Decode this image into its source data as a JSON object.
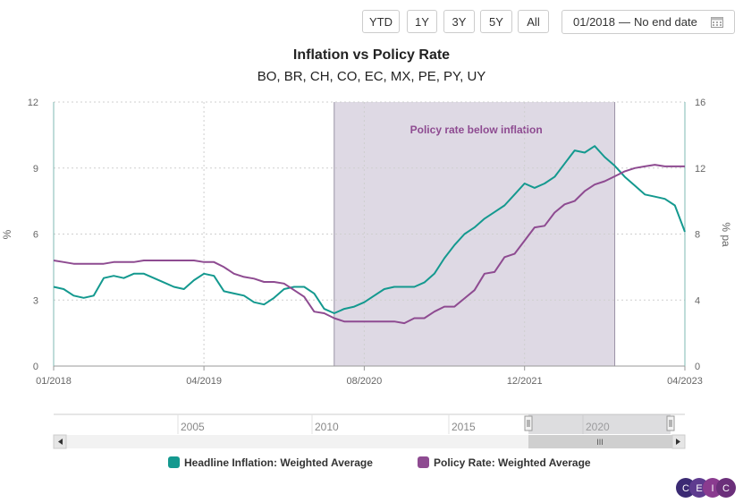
{
  "range_buttons": [
    "YTD",
    "1Y",
    "3Y",
    "5Y",
    "All"
  ],
  "date_range": {
    "start": "01/2018",
    "separator": "—",
    "end": "No end date"
  },
  "calendar_icon": "calendar-icon",
  "chart_data": {
    "type": "line",
    "title": "Inflation vs Policy Rate",
    "subtitle": "BO, BR, CH, CO, EC, MX, PE, PY, UY",
    "xlabel": "",
    "x_ticks": [
      "01/2018",
      "04/2019",
      "08/2020",
      "12/2021",
      "04/2023"
    ],
    "left_axis": {
      "label": "%",
      "ylim": [
        0,
        12
      ],
      "ticks": [
        "0",
        "3",
        "6",
        "9",
        "12"
      ]
    },
    "right_axis": {
      "label": "% pa",
      "ylim": [
        0,
        16
      ],
      "ticks": [
        "0",
        "4",
        "8",
        "12",
        "16"
      ]
    },
    "grid": true,
    "shaded_region": {
      "start": "2020-05",
      "end": "2022-09",
      "label": "Policy rate below inflation",
      "color": "#ded9e4"
    },
    "series": [
      {
        "name": "Headline Inflation: Weighted Average",
        "axis": "left",
        "color": "#14998f",
        "x": [
          "2018-01",
          "2018-02",
          "2018-03",
          "2018-04",
          "2018-05",
          "2018-06",
          "2018-07",
          "2018-08",
          "2018-09",
          "2018-10",
          "2018-11",
          "2018-12",
          "2019-01",
          "2019-02",
          "2019-03",
          "2019-04",
          "2019-05",
          "2019-06",
          "2019-07",
          "2019-08",
          "2019-09",
          "2019-10",
          "2019-11",
          "2019-12",
          "2020-01",
          "2020-02",
          "2020-03",
          "2020-04",
          "2020-05",
          "2020-06",
          "2020-07",
          "2020-08",
          "2020-09",
          "2020-10",
          "2020-11",
          "2020-12",
          "2021-01",
          "2021-02",
          "2021-03",
          "2021-04",
          "2021-05",
          "2021-06",
          "2021-07",
          "2021-08",
          "2021-09",
          "2021-10",
          "2021-11",
          "2021-12",
          "2022-01",
          "2022-02",
          "2022-03",
          "2022-04",
          "2022-05",
          "2022-06",
          "2022-07",
          "2022-08",
          "2022-09",
          "2022-10",
          "2022-11",
          "2022-12",
          "2023-01",
          "2023-02",
          "2023-03",
          "2023-04"
        ],
        "values": [
          3.6,
          3.5,
          3.2,
          3.1,
          3.2,
          4.0,
          4.1,
          4.0,
          4.2,
          4.2,
          4.0,
          3.8,
          3.6,
          3.5,
          3.9,
          4.2,
          4.1,
          3.4,
          3.3,
          3.2,
          2.9,
          2.8,
          3.1,
          3.5,
          3.6,
          3.6,
          3.3,
          2.6,
          2.4,
          2.6,
          2.7,
          2.9,
          3.2,
          3.5,
          3.6,
          3.6,
          3.6,
          3.8,
          4.2,
          4.9,
          5.5,
          6.0,
          6.3,
          6.7,
          7.0,
          7.3,
          7.8,
          8.3,
          8.1,
          8.3,
          8.6,
          9.2,
          9.8,
          9.7,
          10.0,
          9.5,
          9.1,
          8.6,
          8.2,
          7.8,
          7.7,
          7.6,
          7.3,
          6.1
        ]
      },
      {
        "name": "Policy Rate: Weighted Average",
        "axis": "right",
        "color": "#8e4b91",
        "x": [
          "2018-01",
          "2018-02",
          "2018-03",
          "2018-04",
          "2018-05",
          "2018-06",
          "2018-07",
          "2018-08",
          "2018-09",
          "2018-10",
          "2018-11",
          "2018-12",
          "2019-01",
          "2019-02",
          "2019-03",
          "2019-04",
          "2019-05",
          "2019-06",
          "2019-07",
          "2019-08",
          "2019-09",
          "2019-10",
          "2019-11",
          "2019-12",
          "2020-01",
          "2020-02",
          "2020-03",
          "2020-04",
          "2020-05",
          "2020-06",
          "2020-07",
          "2020-08",
          "2020-09",
          "2020-10",
          "2020-11",
          "2020-12",
          "2021-01",
          "2021-02",
          "2021-03",
          "2021-04",
          "2021-05",
          "2021-06",
          "2021-07",
          "2021-08",
          "2021-09",
          "2021-10",
          "2021-11",
          "2021-12",
          "2022-01",
          "2022-02",
          "2022-03",
          "2022-04",
          "2022-05",
          "2022-06",
          "2022-07",
          "2022-08",
          "2022-09",
          "2022-10",
          "2022-11",
          "2022-12",
          "2023-01",
          "2023-02",
          "2023-03",
          "2023-04"
        ],
        "values": [
          6.4,
          6.3,
          6.2,
          6.2,
          6.2,
          6.2,
          6.3,
          6.3,
          6.3,
          6.4,
          6.4,
          6.4,
          6.4,
          6.4,
          6.4,
          6.3,
          6.3,
          6.0,
          5.6,
          5.4,
          5.3,
          5.1,
          5.1,
          5.0,
          4.6,
          4.2,
          3.3,
          3.2,
          2.9,
          2.7,
          2.7,
          2.7,
          2.7,
          2.7,
          2.7,
          2.6,
          2.9,
          2.9,
          3.3,
          3.6,
          3.6,
          4.1,
          4.6,
          5.6,
          5.7,
          6.6,
          6.8,
          7.6,
          8.4,
          8.5,
          9.3,
          9.8,
          10.0,
          10.6,
          11.0,
          11.2,
          11.5,
          11.8,
          12.0,
          12.1,
          12.2,
          12.1,
          12.1,
          12.1
        ]
      }
    ],
    "legend_position": "bottom"
  },
  "navigator": {
    "year_labels": [
      "2005",
      "2010",
      "2015",
      "2020"
    ],
    "scroll_grip": "III"
  },
  "logo_letters": [
    "C",
    "E",
    "I",
    "C"
  ]
}
